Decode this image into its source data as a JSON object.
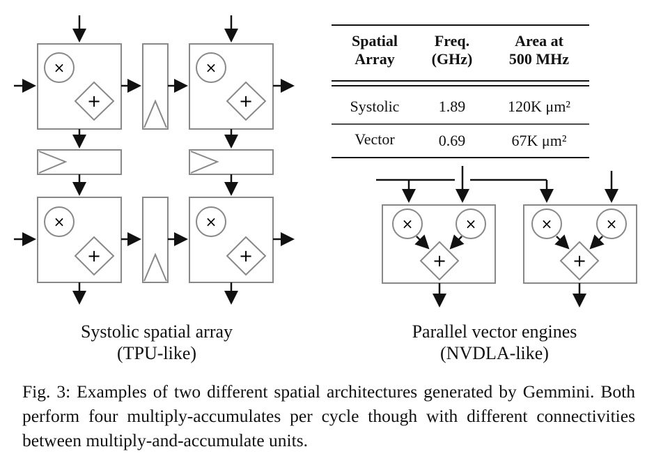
{
  "table": {
    "headers": [
      "Spatial Array",
      "Freq. (GHz)",
      "Area at 500 MHz"
    ],
    "rows": [
      {
        "array": "Systolic",
        "freq": "1.89",
        "area": "120K μm²"
      },
      {
        "array": "Vector",
        "freq": "0.69",
        "area": "67K μm²"
      }
    ]
  },
  "labels": {
    "left_title": "Systolic spatial array",
    "left_subtitle": "(TPU-like)",
    "right_title": "Parallel vector engines",
    "right_subtitle": "(NVDLA-like)"
  },
  "symbols": {
    "multiply": "×",
    "add": "+"
  },
  "caption": "Fig. 3: Examples of two different spatial architectures generated by Gemmini. Both perform four multiply-accumulates per cycle though with different connectivities between multiply-and-accumulate units."
}
